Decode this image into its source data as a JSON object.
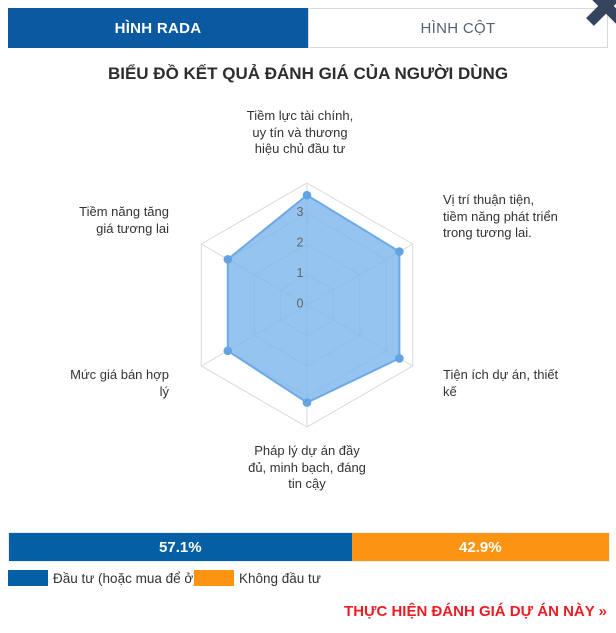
{
  "tabs": {
    "radar_label": "HÌNH RADA",
    "column_label": "HÌNH CỘT"
  },
  "page_title": "BIỂU ĐỒ KẾT QUẢ ĐÁNH GIÁ CỦA NGƯỜI DÙNG",
  "chart_data": [
    {
      "type": "radar",
      "title": "BIỂU ĐỒ KẾT QUẢ ĐÁNH GIÁ CỦA NGƯỜI DÙNG",
      "categories": [
        "Tiềm lực tài chính, uy tín và thương hiệu chủ đầu tư",
        "Vị trí thuận tiện, tiềm năng phát triển trong tương lai.",
        "Tiện ích dự án, thiết kế",
        "Pháp lý dự án đầy đủ, minh bạch, đáng tin cậy",
        "Mức giá bán hợp lý",
        "Tiềm năng tăng giá tương lai"
      ],
      "values": [
        3.6,
        3.5,
        3.5,
        3.2,
        3.0,
        3.0
      ],
      "ticks": [
        "0",
        "1",
        "2",
        "3"
      ],
      "axis_range": [
        0,
        4
      ],
      "grid": true,
      "series_fill": "rgba(124,181,236,0.8)",
      "series_stroke": "#6da9e4",
      "point_color": "#64a3e2",
      "grid_color": "#d9d9d9",
      "tick_color": "#666666"
    },
    {
      "type": "bar",
      "subtype": "stacked-percentage",
      "segments": [
        {
          "label": "Đầu tư (hoặc mua để ở)",
          "value": 57.1,
          "display": "57.1%",
          "color": "#045fa5"
        },
        {
          "label": "Không đầu tư",
          "value": 42.9,
          "display": "42.9%",
          "color": "#fb9410"
        }
      ],
      "legend_position": "bottom-left"
    }
  ],
  "legend": {
    "items": [
      {
        "label": "Đầu tư (hoặc mua để ở)",
        "color": "#045fa5"
      },
      {
        "label": "Không đầu tư",
        "color": "#fb9410"
      }
    ]
  },
  "action_link": {
    "label": "THỰC HIỆN ĐÁNH GIÁ DỰ ÁN NÀY »"
  },
  "colors": {
    "tab_active_bg": "#0b5aa1",
    "accent_blue": "#045fa5",
    "accent_orange": "#fb9410",
    "link_red": "#ed1c24",
    "corner_glyph": "#35455e"
  }
}
